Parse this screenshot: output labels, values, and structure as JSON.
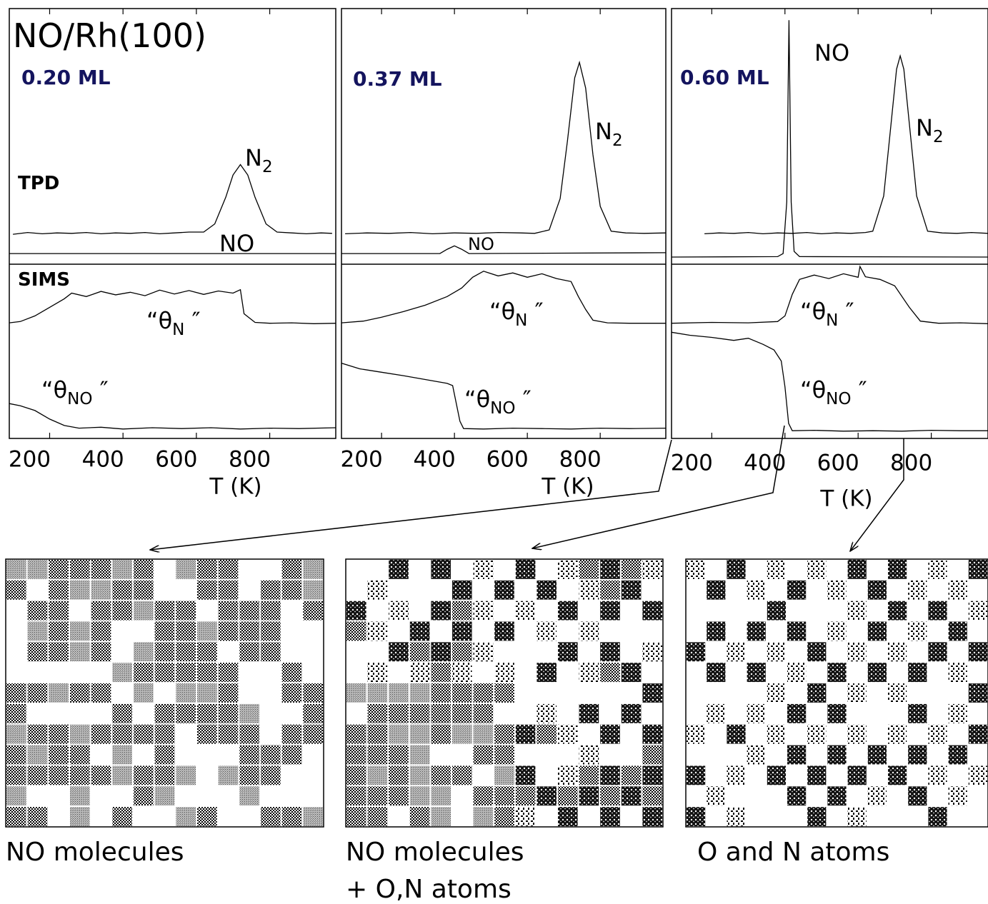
{
  "chart_data": [
    {
      "type": "line",
      "title": "NO/Rh(100)",
      "coverage_label": "0.20 ML",
      "section_labels": [
        "TPD",
        "SIMS"
      ],
      "xlabel": "T (K)",
      "xlim": [
        90,
        980
      ],
      "xticks": [
        200,
        400,
        600,
        800
      ],
      "ylim": [
        0,
        100
      ],
      "series": [
        {
          "color": "#000000",
          "x": [
            100,
            140,
            180,
            220,
            260,
            300,
            340,
            380,
            420,
            460,
            500,
            540,
            580,
            620,
            650,
            680,
            700,
            720,
            740,
            760,
            790,
            820,
            860,
            900,
            940,
            970
          ],
          "values": [
            47.5,
            47.9,
            47.6,
            47.8,
            47.7,
            47.9,
            47.6,
            47.8,
            47.7,
            47.9,
            47.6,
            47.8,
            48.0,
            48.0,
            49.9,
            56.1,
            61.3,
            63.7,
            61.3,
            56.1,
            49.9,
            48.0,
            47.8,
            47.6,
            47.8,
            47.7
          ]
        },
        {
          "color": "#000000",
          "x": [
            90,
            980
          ],
          "values": [
            43,
            43
          ]
        },
        {
          "color": "#000000",
          "x": [
            90,
            120,
            160,
            200,
            240,
            260,
            300,
            340,
            380,
            420,
            460,
            500,
            540,
            580,
            620,
            660,
            700,
            720,
            730,
            760,
            800,
            860,
            920,
            980
          ],
          "values": [
            26.9,
            27.2,
            28.5,
            30.5,
            32.5,
            33.8,
            33.0,
            34.2,
            33.4,
            34.0,
            33.2,
            34.5,
            33.6,
            34.4,
            33.5,
            34.3,
            33.8,
            34.6,
            29.0,
            27.0,
            26.8,
            26.9,
            26.7,
            26.8
          ]
        },
        {
          "color": "#000000",
          "x": [
            90,
            120,
            160,
            200,
            240,
            280,
            340,
            400,
            480,
            560,
            640,
            720,
            800,
            880,
            980
          ],
          "values": [
            8.1,
            7.6,
            6.5,
            4.5,
            3.0,
            2.4,
            2.6,
            2.2,
            2.5,
            2.3,
            2.5,
            2.2,
            2.4,
            2.3,
            2.5
          ]
        }
      ],
      "annotations": [
        {
          "text": "N",
          "sub": "2"
        },
        {
          "text": "NO"
        },
        {
          "text": "“θ",
          "sub": "N",
          "end": " ″"
        },
        {
          "text": "“θ",
          "sub": "NO",
          "end": " ″"
        }
      ]
    },
    {
      "type": "line",
      "coverage_label": "0.37 ML",
      "xlabel": "T (K)",
      "xlim": [
        90,
        980
      ],
      "xticks": [
        200,
        400,
        600,
        800
      ],
      "ylim": [
        0,
        100
      ],
      "series": [
        {
          "color": "#000000",
          "x": [
            100,
            160,
            220,
            280,
            340,
            400,
            460,
            520,
            580,
            620,
            660,
            690,
            710,
            730,
            743,
            760,
            780,
            800,
            830,
            870,
            920,
            980
          ],
          "values": [
            47.6,
            47.8,
            47.7,
            47.9,
            47.6,
            47.8,
            47.7,
            47.9,
            47.8,
            47.7,
            48.5,
            55.8,
            69.2,
            83.9,
            87.5,
            81.5,
            66.0,
            54.0,
            48.2,
            47.8,
            47.7,
            47.8
          ]
        },
        {
          "color": "#000000",
          "x": [
            90,
            360,
            380,
            400,
            420,
            440,
            980
          ],
          "values": [
            43,
            43,
            44,
            44.8,
            44,
            43,
            43.2
          ]
        },
        {
          "color": "#000000",
          "x": [
            90,
            150,
            200,
            260,
            320,
            380,
            420,
            450,
            480,
            520,
            560,
            600,
            640,
            680,
            720,
            740,
            760,
            780,
            820,
            880,
            980
          ],
          "values": [
            26.9,
            27.3,
            28.2,
            29.5,
            31.0,
            33.0,
            35.0,
            37.5,
            38.9,
            37.8,
            38.5,
            37.5,
            38.3,
            37.2,
            36.5,
            33.0,
            30.0,
            27.5,
            26.9,
            26.8,
            26.8
          ]
        },
        {
          "color": "#000000",
          "x": [
            90,
            140,
            200,
            260,
            320,
            380,
            395,
            415,
            425,
            480,
            560,
            640,
            720,
            800,
            880,
            980
          ],
          "values": [
            17.5,
            16.2,
            15.4,
            14.6,
            13.7,
            12.8,
            12.3,
            4.0,
            2.3,
            2.2,
            2.4,
            2.3,
            2.2,
            2.4,
            2.3,
            2.4
          ]
        }
      ],
      "annotations": [
        {
          "text": "N",
          "sub": "2"
        },
        {
          "text": "NO"
        },
        {
          "text": "“θ",
          "sub": "N",
          "end": " ″"
        },
        {
          "text": "“θ",
          "sub": "NO",
          "end": " ″"
        }
      ]
    },
    {
      "type": "line",
      "coverage_label": "0.60 ML",
      "xlabel": "T (K)",
      "xlim": [
        90,
        955
      ],
      "xticks": [
        200,
        400,
        600,
        800
      ],
      "ylim": [
        0,
        100
      ],
      "series": [
        {
          "color": "#000000",
          "x": [
            180,
            220,
            260,
            300,
            340,
            380,
            420,
            460,
            500,
            540,
            580,
            620,
            640,
            670,
            690,
            705,
            715,
            725,
            740,
            760,
            790,
            830,
            870,
            910,
            955
          ],
          "values": [
            47.6,
            47.8,
            47.7,
            47.9,
            47.6,
            47.8,
            47.7,
            47.9,
            47.6,
            47.8,
            47.7,
            47.9,
            48.2,
            56.4,
            73.2,
            85.9,
            89.0,
            85.9,
            73.2,
            56.4,
            48.2,
            47.8,
            47.7,
            47.9,
            47.7
          ]
        },
        {
          "color": "#000000",
          "x": [
            90,
            380,
            395,
            405,
            411,
            417,
            425,
            440,
            955
          ],
          "values": [
            42.2,
            42.3,
            43.0,
            55.0,
            97.3,
            55.0,
            43.5,
            42.3,
            42.2
          ]
        },
        {
          "color": "#000000",
          "x": [
            90,
            200,
            300,
            380,
            400,
            420,
            440,
            480,
            520,
            560,
            600,
            605,
            620,
            660,
            700,
            740,
            770,
            820,
            880,
            955
          ],
          "values": [
            26.8,
            27.0,
            26.9,
            27.2,
            28.5,
            33.5,
            37.0,
            38.0,
            37.2,
            38.3,
            37.5,
            40.0,
            37.6,
            37.0,
            35.5,
            30.5,
            27.3,
            26.8,
            26.9,
            26.7
          ]
        },
        {
          "color": "#000000",
          "x": [
            90,
            140,
            200,
            260,
            300,
            340,
            370,
            390,
            400,
            410,
            420,
            480,
            560,
            640,
            720,
            800,
            880,
            955
          ],
          "values": [
            24.7,
            24.0,
            23.5,
            22.8,
            23.3,
            21.9,
            20.6,
            18.0,
            12.0,
            3.5,
            1.8,
            1.9,
            1.7,
            1.8,
            1.7,
            1.9,
            1.8,
            1.8
          ]
        }
      ],
      "annotations": [
        {
          "text": "N",
          "sub": "2"
        },
        {
          "text": "NO"
        },
        {
          "text": "“θ",
          "sub": "N",
          "end": " ″"
        },
        {
          "text": "“θ",
          "sub": "NO",
          "end": " ″"
        }
      ]
    }
  ],
  "images": [
    {
      "caption": [
        "NO molecules"
      ]
    },
    {
      "caption": [
        "NO molecules",
        "+ O,N atoms"
      ]
    },
    {
      "caption": [
        "O and N atoms"
      ]
    }
  ]
}
